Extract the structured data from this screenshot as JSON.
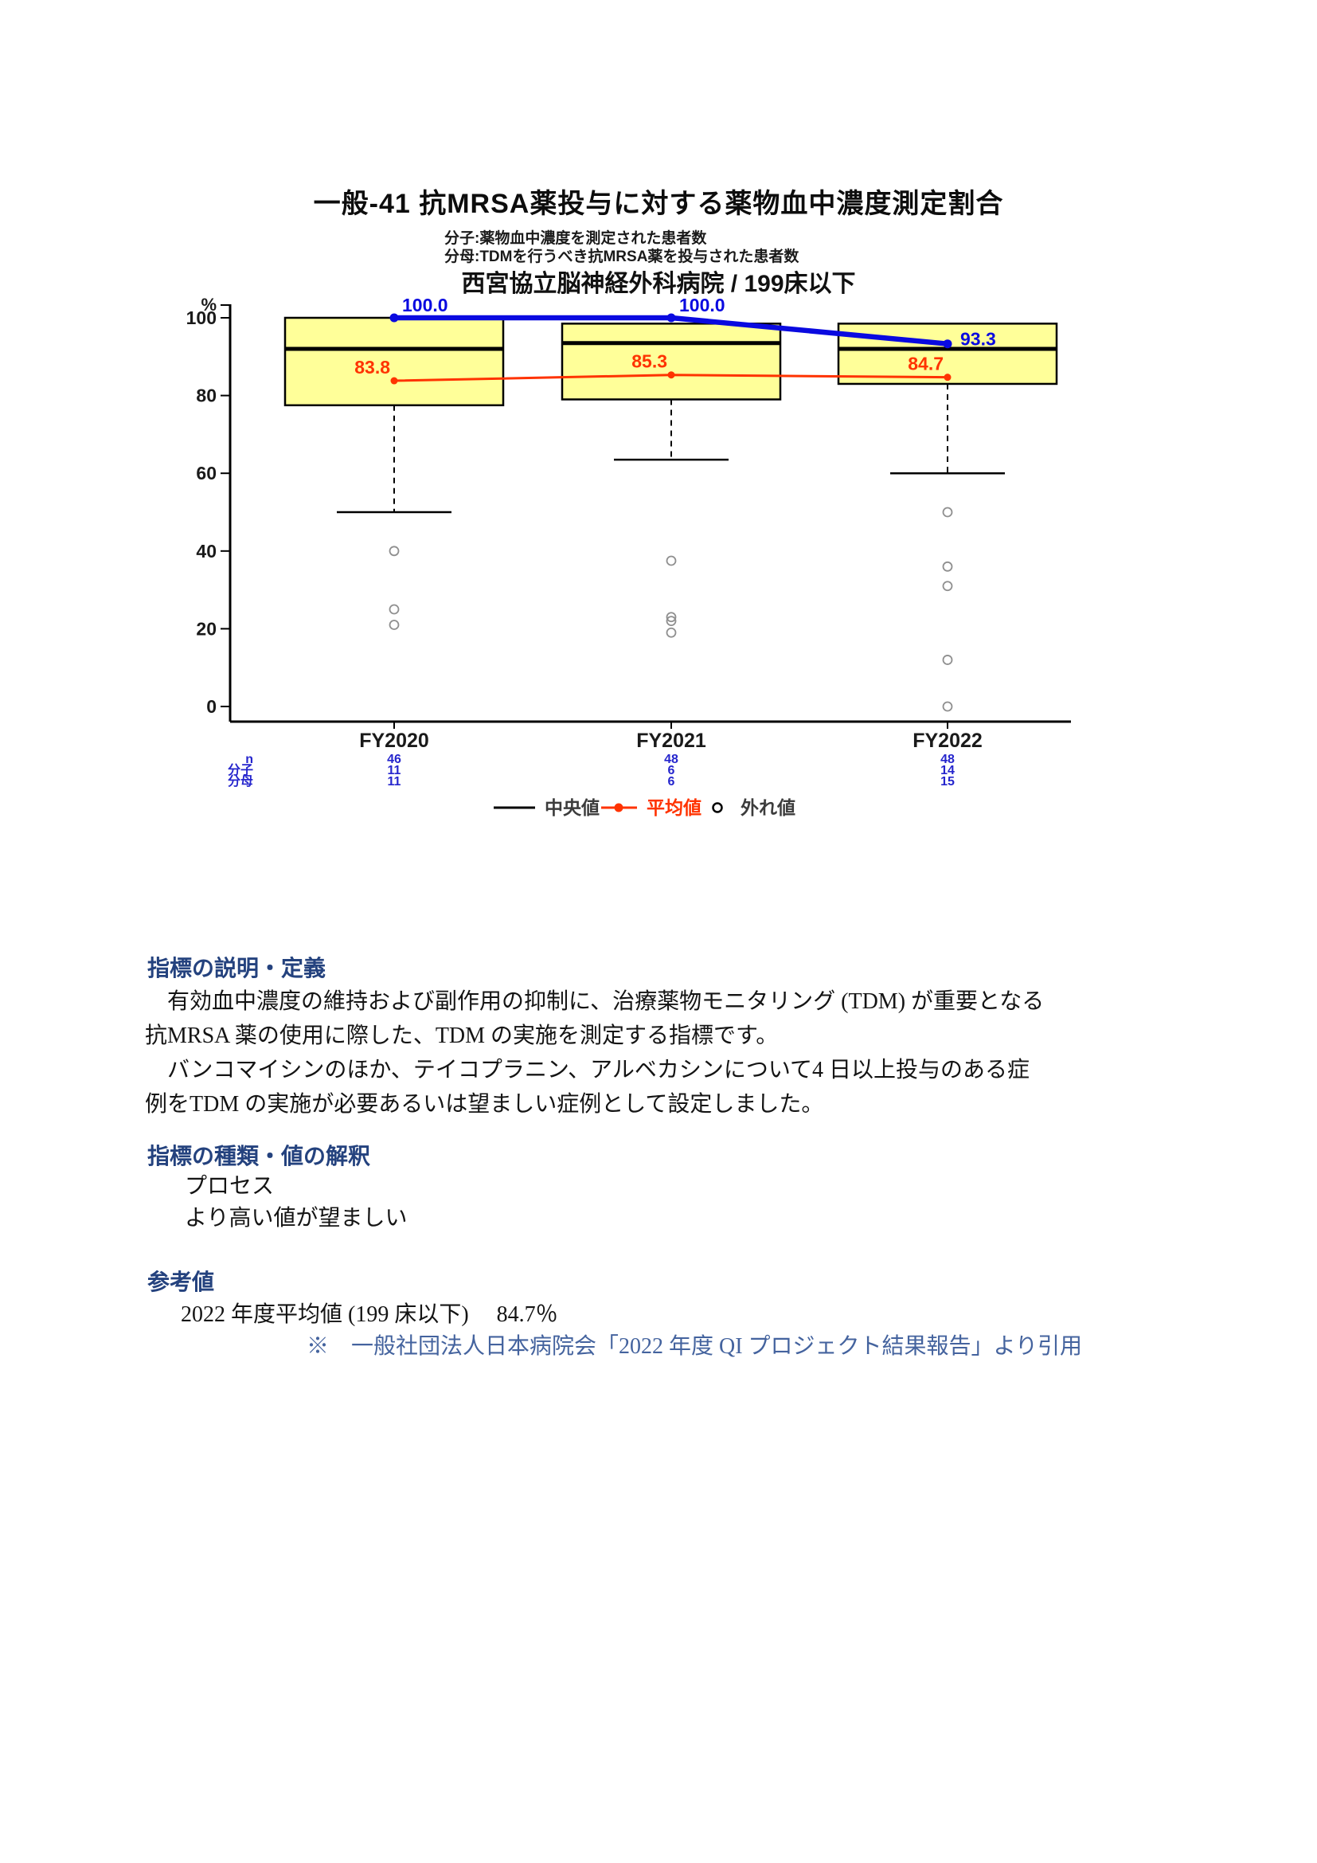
{
  "chart_data": {
    "type": "boxplot",
    "title": "一般-41 抗MRSA薬投与に対する薬物血中濃度測定割合",
    "subtitle_numerator": "分子:薬物血中濃度を測定された患者数",
    "subtitle_denominator": "分母:TDMを行うべき抗MRSA薬を投与された患者数",
    "facility_heading": "西宮協立脳神経外科病院 / 199床以下",
    "y_unit": "%",
    "ylim": [
      0,
      100
    ],
    "yticks": [
      0,
      20,
      40,
      60,
      80,
      100
    ],
    "grid": false,
    "categories": [
      "FY2020",
      "FY2021",
      "FY2022"
    ],
    "boxes": [
      {
        "q3": 100,
        "median": 92,
        "q1": 77.5,
        "whisker_low": 50,
        "outliers": [
          40,
          25,
          21
        ]
      },
      {
        "q3": 98.5,
        "median": 93.5,
        "q1": 79,
        "whisker_low": 63.5,
        "outliers": [
          37.5,
          23,
          22,
          19
        ]
      },
      {
        "q3": 98.5,
        "median": 92,
        "q1": 83,
        "whisker_low": 60,
        "outliers": [
          50,
          36,
          31,
          12,
          0
        ]
      }
    ],
    "series": [
      {
        "name": "mean",
        "color": "#ff3300",
        "values": [
          83.8,
          85.3,
          84.7
        ],
        "point_labels": [
          "83.8",
          "85.3",
          "84.7"
        ]
      },
      {
        "name": "hospital",
        "color": "#0a0ae0",
        "values": [
          100.0,
          100.0,
          93.3
        ],
        "point_labels": [
          "100.0",
          "100.0",
          "93.3"
        ]
      }
    ],
    "counts": {
      "row_labels": [
        "n",
        "分子",
        "分母"
      ],
      "values": [
        [
          46,
          11,
          11
        ],
        [
          48,
          6,
          6
        ],
        [
          48,
          14,
          15
        ]
      ]
    },
    "legend": [
      {
        "symbol": "line",
        "color": "#000000",
        "label": "中央値"
      },
      {
        "symbol": "line-dot",
        "color": "#ff3300",
        "label": "平均値"
      },
      {
        "symbol": "circle",
        "color": "#000000",
        "label": "外れ値"
      }
    ],
    "colors": {
      "box_fill": "#ffff99",
      "box_stroke": "#000000",
      "outlier": "#8f8f8f",
      "count_text": "#2525cd",
      "axis_text": "#1a1a1a",
      "legend_text": "#3c3c3c"
    }
  },
  "sections": [
    {
      "heading": "指標の説明・定義",
      "lines": [
        "　有効血中濃度の維持および副作用の抑制に、治療薬物モニタリング (TDM) が重要となる",
        "抗MRSA 薬の使用に際した、TDM の実施を測定する指標です。",
        "　バンコマイシンのほか、テイコプラニン、アルベカシンについて4 日以上投与のある症",
        "例をTDM の実施が必要あるいは望ましい症例として設定しました。"
      ]
    },
    {
      "heading": "指標の種類・値の解釈",
      "lines": [
        "プロセス",
        "より高い値が望ましい"
      ]
    },
    {
      "heading": "参考値",
      "lines": [
        "2022 年度平均値 (199 床以下)　 84.7％"
      ],
      "note": "※　一般社団法人日本病院会「2022 年度 QI プロジェクト結果報告」より引用"
    }
  ]
}
